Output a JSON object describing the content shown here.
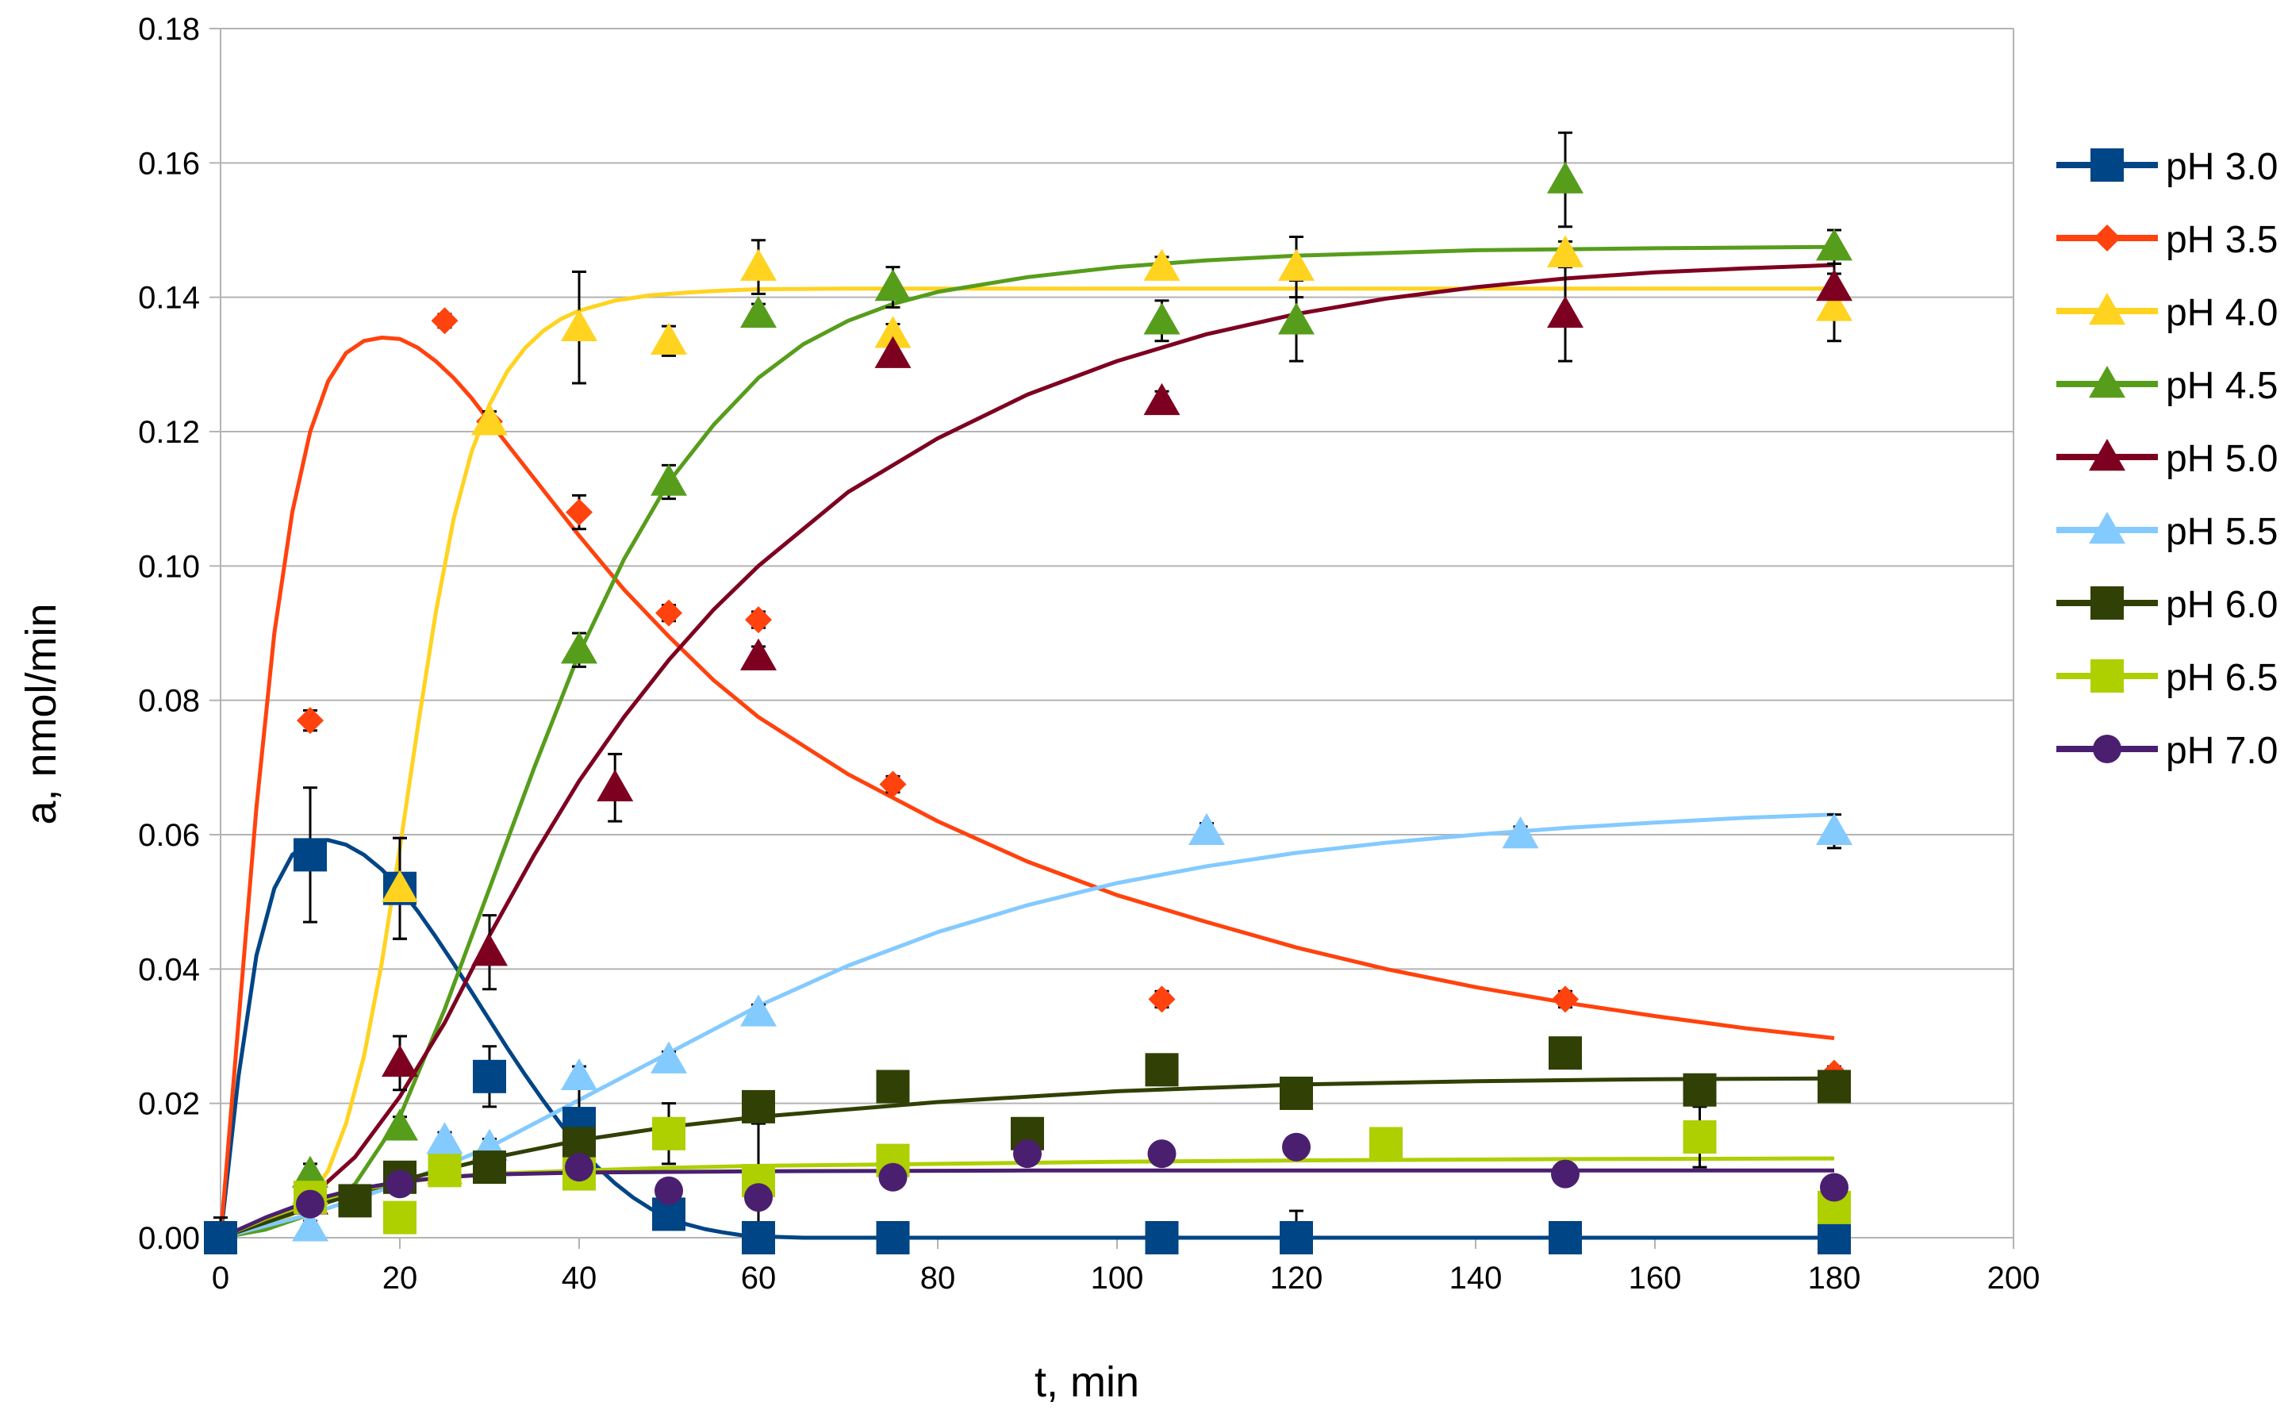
{
  "chart_data": {
    "type": "scatter",
    "title": "",
    "xlabel": "t, min",
    "ylabel": "a, nmol/min",
    "xlim": [
      0,
      200
    ],
    "ylim": [
      0,
      0.18
    ],
    "x_ticks": [
      0,
      20,
      40,
      60,
      80,
      100,
      120,
      140,
      160,
      180,
      200
    ],
    "x_tick_labels": [
      "0",
      "20",
      "40",
      "60",
      "80",
      "100",
      "120",
      "140",
      "160",
      "180",
      "200"
    ],
    "y_ticks": [
      0,
      0.02,
      0.04,
      0.06,
      0.08,
      0.1,
      0.12,
      0.14,
      0.16,
      0.18
    ],
    "y_tick_labels": [
      "0.00",
      "0.02",
      "0.04",
      "0.06",
      "0.08",
      "0.10",
      "0.12",
      "0.14",
      "0.16",
      "0.18"
    ],
    "grid": true,
    "legend_position": "right",
    "series": [
      {
        "name": "pH 3.0",
        "color": "#004586",
        "marker": "square",
        "x": [
          0,
          10,
          20,
          30,
          40,
          50,
          60,
          75,
          105,
          120,
          150,
          180
        ],
        "y": [
          0,
          0.057,
          0.052,
          0.024,
          0.017,
          0.0035,
          0,
          0,
          0,
          0,
          0,
          0
        ],
        "err": [
          0.003,
          0.01,
          0.0075,
          0.0045,
          0.006,
          0.002,
          0.001,
          0.001,
          0.001,
          0.004,
          0.001,
          0.001
        ],
        "fit_x": [
          0,
          2,
          4,
          6,
          8,
          10,
          12,
          14,
          16,
          18,
          20,
          22,
          24,
          26,
          28,
          30,
          32,
          34,
          36,
          38,
          40,
          42,
          44,
          46,
          48,
          50,
          52,
          54,
          56,
          58,
          60,
          65,
          70,
          80,
          100,
          120,
          150,
          180
        ],
        "fit_y": [
          0,
          0.024,
          0.042,
          0.052,
          0.057,
          0.059,
          0.0592,
          0.0585,
          0.057,
          0.0548,
          0.052,
          0.0486,
          0.0448,
          0.0408,
          0.0366,
          0.0324,
          0.0282,
          0.0242,
          0.0204,
          0.0168,
          0.0135,
          0.0106,
          0.0081,
          0.006,
          0.0043,
          0.003,
          0.002,
          0.0013,
          0.0008,
          0.0004,
          0.0002,
          0,
          0,
          0,
          0,
          0,
          0,
          0
        ]
      },
      {
        "name": "pH 3.5",
        "color": "#ff420e",
        "marker": "diamond",
        "x": [
          10,
          25,
          30,
          40,
          50,
          60,
          75,
          105,
          150,
          180
        ],
        "y": [
          0.077,
          0.1365,
          0.1215,
          0.108,
          0.093,
          0.092,
          0.0675,
          0.0355,
          0.0355,
          0.0245
        ],
        "err": [
          0.0015,
          0.001,
          0.0015,
          0.0025,
          0.0012,
          0.0012,
          0.0012,
          0.0012,
          0.0012,
          0.001
        ],
        "fit_x": [
          0,
          2,
          4,
          6,
          8,
          10,
          12,
          14,
          16,
          18,
          20,
          22,
          24,
          26,
          28,
          30,
          35,
          40,
          45,
          50,
          55,
          60,
          70,
          80,
          90,
          100,
          110,
          120,
          130,
          140,
          150,
          160,
          170,
          180
        ],
        "fit_y": [
          0,
          0.032,
          0.064,
          0.09,
          0.108,
          0.12,
          0.1275,
          0.1317,
          0.1335,
          0.134,
          0.1338,
          0.1325,
          0.1305,
          0.128,
          0.125,
          0.1215,
          0.113,
          0.1045,
          0.0965,
          0.0895,
          0.083,
          0.0775,
          0.069,
          0.062,
          0.056,
          0.051,
          0.047,
          0.0432,
          0.04,
          0.0373,
          0.035,
          0.033,
          0.0312,
          0.0297
        ]
      },
      {
        "name": "pH 4.0",
        "color": "#ffd320",
        "marker": "triangle",
        "x": [
          10,
          20,
          25,
          30,
          40,
          50,
          60,
          75,
          105,
          120,
          150,
          180
        ],
        "y": [
          0.007,
          0.052,
          0.01,
          0.1215,
          0.1355,
          0.1335,
          0.1445,
          0.1345,
          0.1445,
          0.1445,
          0.1465,
          0.1385
        ],
        "err": [
          0.0015,
          0.0075,
          0.0015,
          0.0015,
          0.0083,
          0.0022,
          0.004,
          0.0015,
          0.0015,
          0.0045,
          0.0018,
          0.005
        ],
        "fit_x": [
          0,
          4,
          8,
          10,
          12,
          14,
          16,
          18,
          20,
          22,
          24,
          26,
          28,
          30,
          32,
          34,
          36,
          38,
          40,
          44,
          48,
          52,
          56,
          60,
          70,
          80,
          100,
          120,
          150,
          180
        ],
        "fit_y": [
          0,
          0.0012,
          0.0035,
          0.006,
          0.01,
          0.017,
          0.027,
          0.041,
          0.058,
          0.076,
          0.093,
          0.107,
          0.117,
          0.124,
          0.129,
          0.1325,
          0.135,
          0.1368,
          0.138,
          0.1395,
          0.1403,
          0.1407,
          0.141,
          0.1412,
          0.1413,
          0.1413,
          0.1413,
          0.1413,
          0.1413,
          0.1413
        ]
      },
      {
        "name": "pH 4.5",
        "color": "#579d1c",
        "marker": "triangle",
        "x": [
          10,
          20,
          40,
          50,
          60,
          75,
          105,
          120,
          150,
          180
        ],
        "y": [
          0.0095,
          0.0165,
          0.0875,
          0.1125,
          0.1375,
          0.1415,
          0.1365,
          0.1365,
          0.1575,
          0.1475
        ],
        "err": [
          0.0015,
          0.0015,
          0.0025,
          0.0025,
          0.0015,
          0.003,
          0.003,
          0.006,
          0.007,
          0.0025
        ],
        "fit_x": [
          0,
          5,
          10,
          15,
          20,
          25,
          30,
          35,
          40,
          45,
          50,
          55,
          60,
          65,
          70,
          75,
          80,
          90,
          100,
          110,
          120,
          140,
          160,
          180
        ],
        "fit_y": [
          0,
          0.0012,
          0.0035,
          0.008,
          0.018,
          0.034,
          0.052,
          0.07,
          0.087,
          0.101,
          0.1125,
          0.121,
          0.128,
          0.133,
          0.1365,
          0.139,
          0.1408,
          0.143,
          0.1445,
          0.1455,
          0.1462,
          0.147,
          0.1473,
          0.1475
        ]
      },
      {
        "name": "pH 5.0",
        "color": "#7e0021",
        "marker": "triangle",
        "x": [
          10,
          20,
          30,
          44,
          60,
          75,
          105,
          150,
          180
        ],
        "y": [
          0.0055,
          0.026,
          0.0425,
          0.067,
          0.0865,
          0.1315,
          0.1245,
          0.1375,
          0.1415
        ],
        "err": [
          0.0012,
          0.004,
          0.0055,
          0.005,
          0.0015,
          0.0012,
          0.0015,
          0.007,
          0.0035
        ],
        "fit_x": [
          0,
          5,
          10,
          15,
          20,
          25,
          30,
          35,
          40,
          45,
          50,
          55,
          60,
          70,
          80,
          90,
          100,
          110,
          120,
          130,
          140,
          150,
          160,
          170,
          180
        ],
        "fit_y": [
          0,
          0.002,
          0.006,
          0.012,
          0.021,
          0.032,
          0.045,
          0.057,
          0.068,
          0.0775,
          0.086,
          0.0935,
          0.1,
          0.111,
          0.119,
          0.1255,
          0.1305,
          0.1345,
          0.1375,
          0.1398,
          0.1415,
          0.1428,
          0.1437,
          0.1443,
          0.1448
        ]
      },
      {
        "name": "pH 5.5",
        "color": "#83caff",
        "marker": "triangle",
        "x": [
          10,
          25,
          30,
          40,
          50,
          60,
          110,
          145,
          180
        ],
        "y": [
          0.0015,
          0.0145,
          0.0135,
          0.024,
          0.0265,
          0.0335,
          0.0605,
          0.06,
          0.0605
        ],
        "err": [
          0.001,
          0.0012,
          0.0012,
          0.0015,
          0.0012,
          0.0012,
          0.0012,
          0.0012,
          0.0025
        ],
        "fit_x": [
          0,
          10,
          20,
          30,
          40,
          50,
          60,
          70,
          80,
          90,
          100,
          110,
          120,
          130,
          140,
          150,
          160,
          170,
          180
        ],
        "fit_y": [
          0,
          0.0035,
          0.008,
          0.0135,
          0.0205,
          0.0275,
          0.0345,
          0.0405,
          0.0455,
          0.0495,
          0.0528,
          0.0553,
          0.0573,
          0.0588,
          0.06,
          0.061,
          0.0618,
          0.0625,
          0.063
        ]
      },
      {
        "name": "pH 6.0",
        "color": "#314004",
        "marker": "square",
        "x": [
          15,
          20,
          30,
          40,
          60,
          75,
          90,
          105,
          120,
          150,
          165,
          180
        ],
        "y": [
          0.0055,
          0.009,
          0.0105,
          0.014,
          0.0195,
          0.0225,
          0.0155,
          0.025,
          0.0215,
          0.0275,
          0.022,
          0.0225
        ],
        "err": [
          0.0005,
          0.0005,
          0.0005,
          0.0005,
          0.0005,
          0.0005,
          0.0005,
          0.0005,
          0.0005,
          0.0005,
          0.0005,
          0.0005
        ],
        "fit_x": [
          0,
          10,
          20,
          30,
          40,
          50,
          60,
          80,
          100,
          120,
          140,
          160,
          180
        ],
        "fit_y": [
          0,
          0.0045,
          0.0085,
          0.0118,
          0.0145,
          0.0165,
          0.018,
          0.0202,
          0.0218,
          0.0228,
          0.0233,
          0.0236,
          0.0237
        ]
      },
      {
        "name": "pH 6.5",
        "color": "#aecf00",
        "marker": "square",
        "x": [
          10,
          20,
          25,
          40,
          50,
          60,
          75,
          130,
          165,
          180
        ],
        "y": [
          0.006,
          0.003,
          0.01,
          0.0095,
          0.0155,
          0.0085,
          0.0115,
          0.014,
          0.015,
          0.0045
        ],
        "err": [
          0.0012,
          0.0008,
          0.0012,
          0.0012,
          0.0045,
          0.0085,
          0.0012,
          0.0015,
          0.0045,
          0.0035
        ],
        "fit_x": [
          0,
          5,
          10,
          15,
          20,
          25,
          30,
          40,
          50,
          60,
          80,
          100,
          120,
          150,
          180
        ],
        "fit_y": [
          0,
          0.0028,
          0.0052,
          0.007,
          0.0082,
          0.009,
          0.0095,
          0.01,
          0.0104,
          0.0107,
          0.011,
          0.0113,
          0.0115,
          0.0117,
          0.0118
        ]
      },
      {
        "name": "pH 7.0",
        "color": "#4b1f6f",
        "marker": "circle",
        "x": [
          10,
          20,
          40,
          50,
          60,
          75,
          90,
          105,
          120,
          150,
          180
        ],
        "y": [
          0.005,
          0.008,
          0.0105,
          0.007,
          0.006,
          0.009,
          0.0125,
          0.0125,
          0.0135,
          0.0095,
          0.0075
        ],
        "err": [
          0.0005,
          0.0005,
          0.0005,
          0.0005,
          0.0005,
          0.0005,
          0.0005,
          0.0005,
          0.0005,
          0.0005,
          0.0005
        ],
        "fit_x": [
          0,
          5,
          10,
          15,
          20,
          25,
          30,
          40,
          60,
          90,
          120,
          150,
          180
        ],
        "fit_y": [
          0,
          0.003,
          0.0055,
          0.0072,
          0.0083,
          0.009,
          0.0094,
          0.0097,
          0.0099,
          0.01,
          0.01,
          0.01,
          0.01
        ]
      }
    ]
  }
}
